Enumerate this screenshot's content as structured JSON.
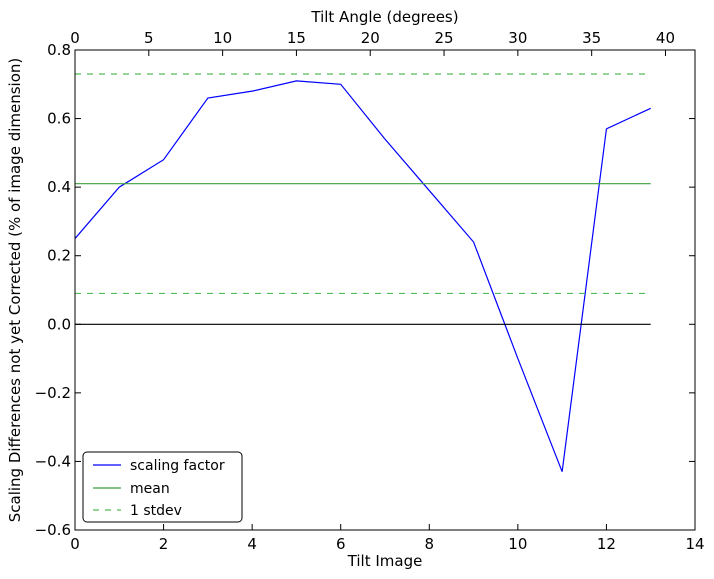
{
  "chart_data": {
    "type": "line",
    "xlabel": "Tilt Image",
    "ylabel": "Scaling Differences not yet Corrected (% of image dimension)",
    "top_xlabel": "Tilt Angle (degrees)",
    "xlim": [
      0,
      14
    ],
    "ylim": [
      -0.6,
      0.8
    ],
    "top_xlim": [
      0,
      42
    ],
    "x_ticks": [
      0,
      2,
      4,
      6,
      8,
      10,
      12,
      14
    ],
    "x_tick_labels": [
      "0",
      "2",
      "4",
      "6",
      "8",
      "10",
      "12",
      "14"
    ],
    "y_ticks": [
      -0.6,
      -0.4,
      -0.2,
      0.0,
      0.2,
      0.4,
      0.6,
      0.8
    ],
    "y_tick_labels": [
      "−0.6",
      "−0.4",
      "−0.2",
      "0.0",
      "0.2",
      "0.4",
      "0.6",
      "0.8"
    ],
    "top_ticks": [
      0,
      5,
      10,
      15,
      20,
      25,
      30,
      35,
      40
    ],
    "top_tick_labels": [
      "0",
      "5",
      "10",
      "15",
      "20",
      "25",
      "30",
      "35",
      "40"
    ],
    "grid": false,
    "legend_position": "lower-left",
    "series": [
      {
        "name": "scaling factor",
        "color": "#0000ff",
        "style": "solid",
        "x": [
          0,
          1,
          2,
          3,
          4,
          5,
          6,
          7,
          8,
          9,
          10,
          11,
          12,
          13
        ],
        "y": [
          0.25,
          0.4,
          0.48,
          0.66,
          0.68,
          0.71,
          0.7,
          0.54,
          0.39,
          0.24,
          -0.1,
          -0.43,
          0.57,
          0.63
        ]
      },
      {
        "name": "mean",
        "color": "#3ca03c",
        "style": "solid",
        "x": [
          0,
          13
        ],
        "y": [
          0.41,
          0.41
        ]
      },
      {
        "name": "1 stdev",
        "color": "#55bb55",
        "style": "dashed",
        "x": [
          0,
          13
        ],
        "y": [
          0.73,
          0.73
        ]
      },
      {
        "name": "",
        "color": "#55bb55",
        "style": "dashed",
        "x": [
          0,
          13
        ],
        "y": [
          0.09,
          0.09
        ]
      },
      {
        "name": "",
        "color": "#000000",
        "style": "solid",
        "x": [
          0,
          13
        ],
        "y": [
          0.0,
          0.0
        ]
      }
    ]
  }
}
